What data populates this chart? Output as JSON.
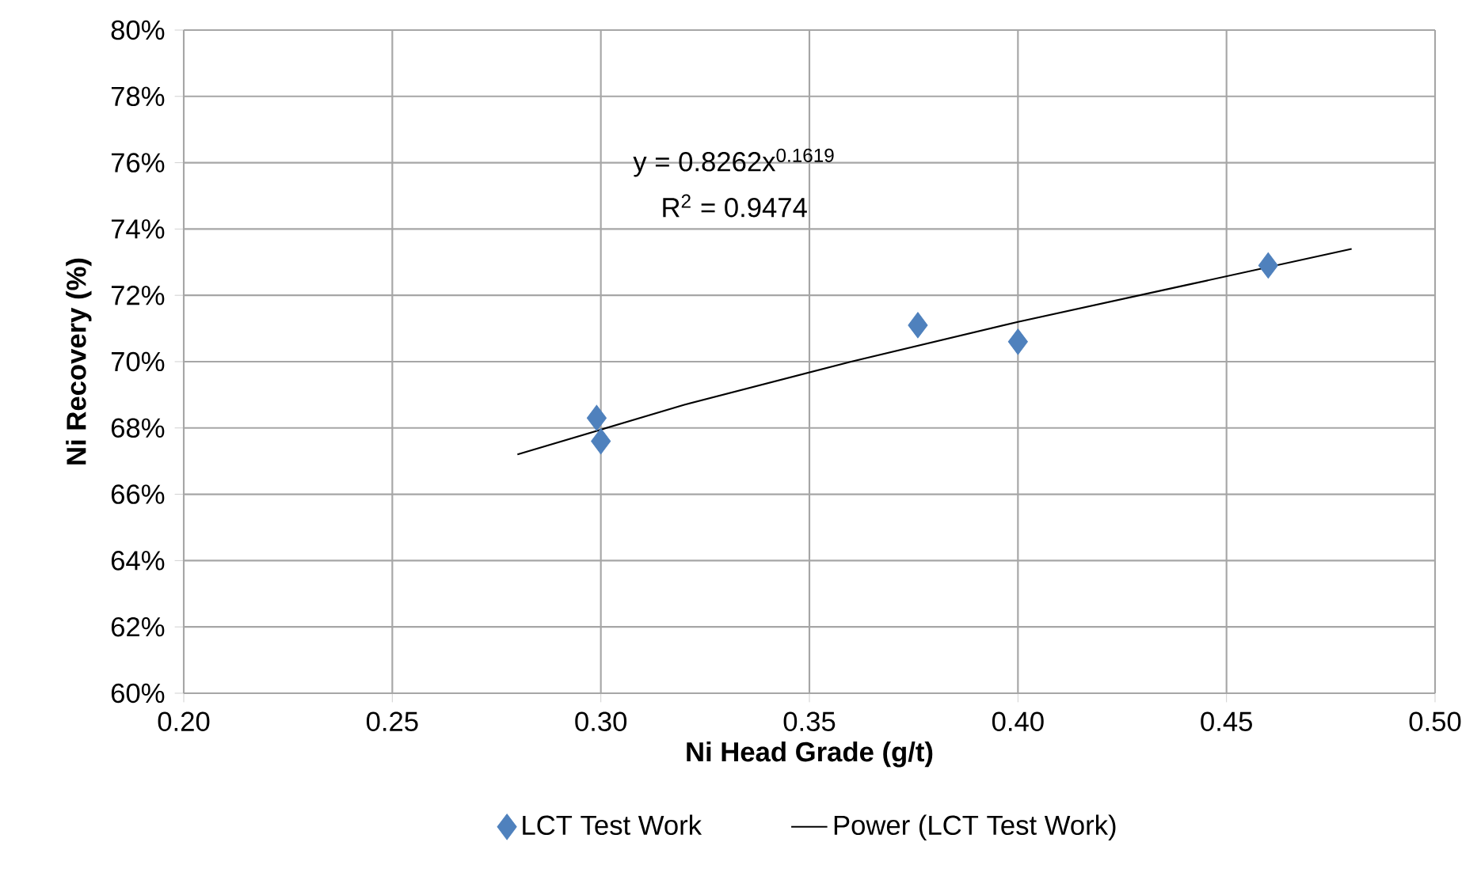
{
  "chart_data": {
    "type": "scatter",
    "xlabel": "Ni Head Grade (g/t)",
    "ylabel": "Ni Recovery (%)",
    "xlim": [
      0.2,
      0.5
    ],
    "xticks": [
      {
        "value": 0.2,
        "label": "0.20"
      },
      {
        "value": 0.25,
        "label": "0.25"
      },
      {
        "value": 0.3,
        "label": "0.30"
      },
      {
        "value": 0.35,
        "label": "0.35"
      },
      {
        "value": 0.4,
        "label": "0.40"
      },
      {
        "value": 0.45,
        "label": "0.45"
      },
      {
        "value": 0.5,
        "label": "0.50"
      }
    ],
    "ylim": [
      60,
      80
    ],
    "yticks": [
      {
        "value": 60,
        "label": "60%"
      },
      {
        "value": 62,
        "label": "62%"
      },
      {
        "value": 64,
        "label": "64%"
      },
      {
        "value": 66,
        "label": "66%"
      },
      {
        "value": 68,
        "label": "68%"
      },
      {
        "value": 70,
        "label": "70%"
      },
      {
        "value": 72,
        "label": "72%"
      },
      {
        "value": 74,
        "label": "74%"
      },
      {
        "value": 76,
        "label": "76%"
      },
      {
        "value": 78,
        "label": "78%"
      },
      {
        "value": 80,
        "label": "80%"
      }
    ],
    "grid": true,
    "legend": "bottom",
    "series": [
      {
        "name": "LCT Test Work",
        "marker": "diamond",
        "color": "#4f81bd",
        "x": [
          0.299,
          0.3,
          0.376,
          0.4,
          0.46
        ],
        "values": [
          68.3,
          67.6,
          71.1,
          70.6,
          72.9
        ]
      },
      {
        "name": "Power (LCT Test Work)",
        "type": "line",
        "marker": "none",
        "color": "#000000",
        "x": [
          0.28,
          0.32,
          0.36,
          0.4,
          0.44,
          0.48
        ],
        "values": [
          67.2,
          68.7,
          70.0,
          71.2,
          72.3,
          73.4
        ]
      }
    ],
    "annotations": [
      "y = 0.8262x$^{0.1619}$",
      "R$^{2}$ = 0.9474"
    ]
  }
}
